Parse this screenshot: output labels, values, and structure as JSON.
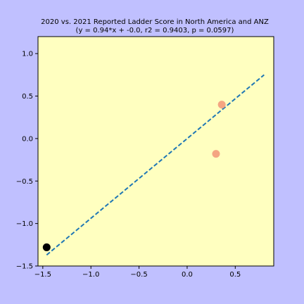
{
  "chart_data": {
    "type": "scatter",
    "title": "2020 vs. 2021 Reported Ladder Score in North America and ANZ",
    "subtitle": "(y = 0.94*x + -0.0, r2 = 0.9403, p = 0.0597)",
    "xlabel": "",
    "ylabel": "",
    "xlim": [
      -1.55,
      0.9
    ],
    "ylim": [
      -1.5,
      1.2
    ],
    "grid": false,
    "x_ticks": [
      -1.5,
      -1.0,
      -0.5,
      0.0,
      0.5
    ],
    "x_tick_labels": [
      "−1.5",
      "−1.0",
      "−0.5",
      "0.0",
      "0.5"
    ],
    "y_ticks": [
      -1.5,
      -1.0,
      -0.5,
      0.0,
      0.5,
      1.0
    ],
    "y_tick_labels": [
      "−1.5",
      "−1.0",
      "−0.5",
      "0.0",
      "0.5",
      "1.0"
    ],
    "points": [
      {
        "x": -1.46,
        "y": -1.28,
        "color": "#000000"
      },
      {
        "x": 0.36,
        "y": 0.4,
        "color": "#f4a582"
      },
      {
        "x": 0.3,
        "y": -0.18,
        "color": "#f4a582"
      }
    ],
    "fit_line": {
      "x": [
        -1.46,
        0.8
      ],
      "y": [
        -1.37,
        0.75
      ],
      "color": "#1f77b4",
      "style": "dashed"
    },
    "colors": {
      "figure_bg": "#c0c0ff",
      "plot_bg": "#ffffc0"
    }
  }
}
